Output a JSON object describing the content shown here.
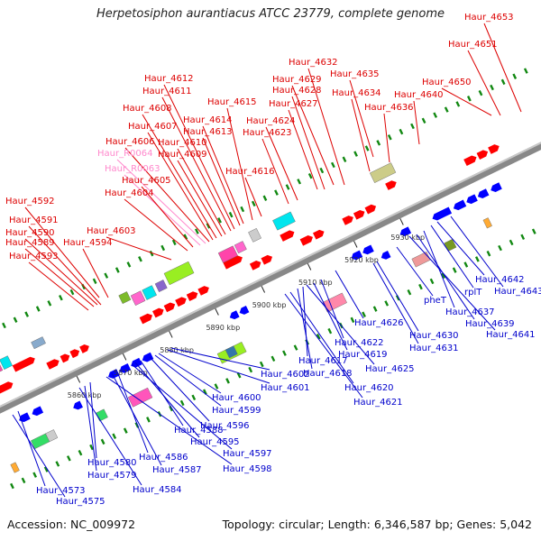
{
  "title": "Herpetosiphon aurantiacus ATCC 23779, complete genome",
  "footer": {
    "accession": "Accession: NC_009972",
    "topology": "Topology: circular; Length: 6,346,587 bp; Genes: 5,042"
  },
  "colors": {
    "plus_label": "#dd0000",
    "minus_label": "#0000cc",
    "rna_label": "#ff88cc",
    "plus_arrow": "#ff0000",
    "minus_arrow": "#0000ff",
    "backbone": "#888888",
    "tick": "#118811"
  },
  "tick_labels": [
    "5860 kbp",
    "5870 kbp",
    "5880 kbp",
    "5890 kbp",
    "5900 kbp",
    "5910 kbp",
    "5920 kbp",
    "5930 kbp"
  ],
  "top_labels": [
    {
      "text": "Haur_4653",
      "kind": "plus"
    },
    {
      "text": "Haur_4651",
      "kind": "plus"
    },
    {
      "text": "Haur_4650",
      "kind": "plus"
    },
    {
      "text": "Haur_4640",
      "kind": "plus"
    },
    {
      "text": "Haur_4636",
      "kind": "plus"
    },
    {
      "text": "Haur_4635",
      "kind": "plus"
    },
    {
      "text": "Haur_4634",
      "kind": "plus"
    },
    {
      "text": "Haur_4632",
      "kind": "plus"
    },
    {
      "text": "Haur_4629",
      "kind": "plus"
    },
    {
      "text": "Haur_4628",
      "kind": "plus"
    },
    {
      "text": "Haur_4627",
      "kind": "plus"
    },
    {
      "text": "Haur_4624",
      "kind": "plus"
    },
    {
      "text": "Haur_4623",
      "kind": "plus"
    },
    {
      "text": "Haur_4616",
      "kind": "plus"
    },
    {
      "text": "Haur_4615",
      "kind": "plus"
    },
    {
      "text": "Haur_4614",
      "kind": "plus"
    },
    {
      "text": "Haur_4613",
      "kind": "plus"
    },
    {
      "text": "Haur_4612",
      "kind": "plus"
    },
    {
      "text": "Haur_4611",
      "kind": "plus"
    },
    {
      "text": "Haur_4610",
      "kind": "plus"
    },
    {
      "text": "Haur_4609",
      "kind": "plus"
    },
    {
      "text": "Haur_4608",
      "kind": "plus"
    },
    {
      "text": "Haur_4607",
      "kind": "plus"
    },
    {
      "text": "Haur_4606",
      "kind": "plus"
    },
    {
      "text": "Haur_R0064",
      "kind": "rna"
    },
    {
      "text": "Haur_R0063",
      "kind": "rna"
    },
    {
      "text": "Haur_4605",
      "kind": "plus"
    },
    {
      "text": "Haur_4604",
      "kind": "plus"
    },
    {
      "text": "Haur_4603",
      "kind": "plus"
    },
    {
      "text": "Haur_4592",
      "kind": "plus"
    },
    {
      "text": "Haur_4591",
      "kind": "plus"
    },
    {
      "text": "Haur_4590",
      "kind": "plus"
    },
    {
      "text": "Haur_4589",
      "kind": "plus"
    },
    {
      "text": "Haur_4594",
      "kind": "plus"
    },
    {
      "text": "Haur_4593",
      "kind": "plus"
    }
  ],
  "bottom_labels": [
    {
      "text": "Haur_4643"
    },
    {
      "text": "Haur_4642"
    },
    {
      "text": "rplT"
    },
    {
      "text": "Haur_4637"
    },
    {
      "text": "Haur_4639"
    },
    {
      "text": "Haur_4641"
    },
    {
      "text": "pheT"
    },
    {
      "text": "Haur_4630"
    },
    {
      "text": "Haur_4631"
    },
    {
      "text": "Haur_4626"
    },
    {
      "text": "Haur_4622"
    },
    {
      "text": "Haur_4619"
    },
    {
      "text": "Haur_4625"
    },
    {
      "text": "Haur_4617"
    },
    {
      "text": "Haur_4618"
    },
    {
      "text": "Haur_4620"
    },
    {
      "text": "Haur_4621"
    },
    {
      "text": "Haur_4602"
    },
    {
      "text": "Haur_4601"
    },
    {
      "text": "Haur_4600"
    },
    {
      "text": "Haur_4599"
    },
    {
      "text": "Haur_4596"
    },
    {
      "text": "Haur_4588"
    },
    {
      "text": "Haur_4595"
    },
    {
      "text": "Haur_4597"
    },
    {
      "text": "Haur_4586"
    },
    {
      "text": "Haur_4587"
    },
    {
      "text": "Haur_4598"
    },
    {
      "text": "Haur_4580"
    },
    {
      "text": "Haur_4579"
    },
    {
      "text": "Haur_4584"
    },
    {
      "text": "Haur_4573"
    },
    {
      "text": "Haur_4575"
    }
  ]
}
